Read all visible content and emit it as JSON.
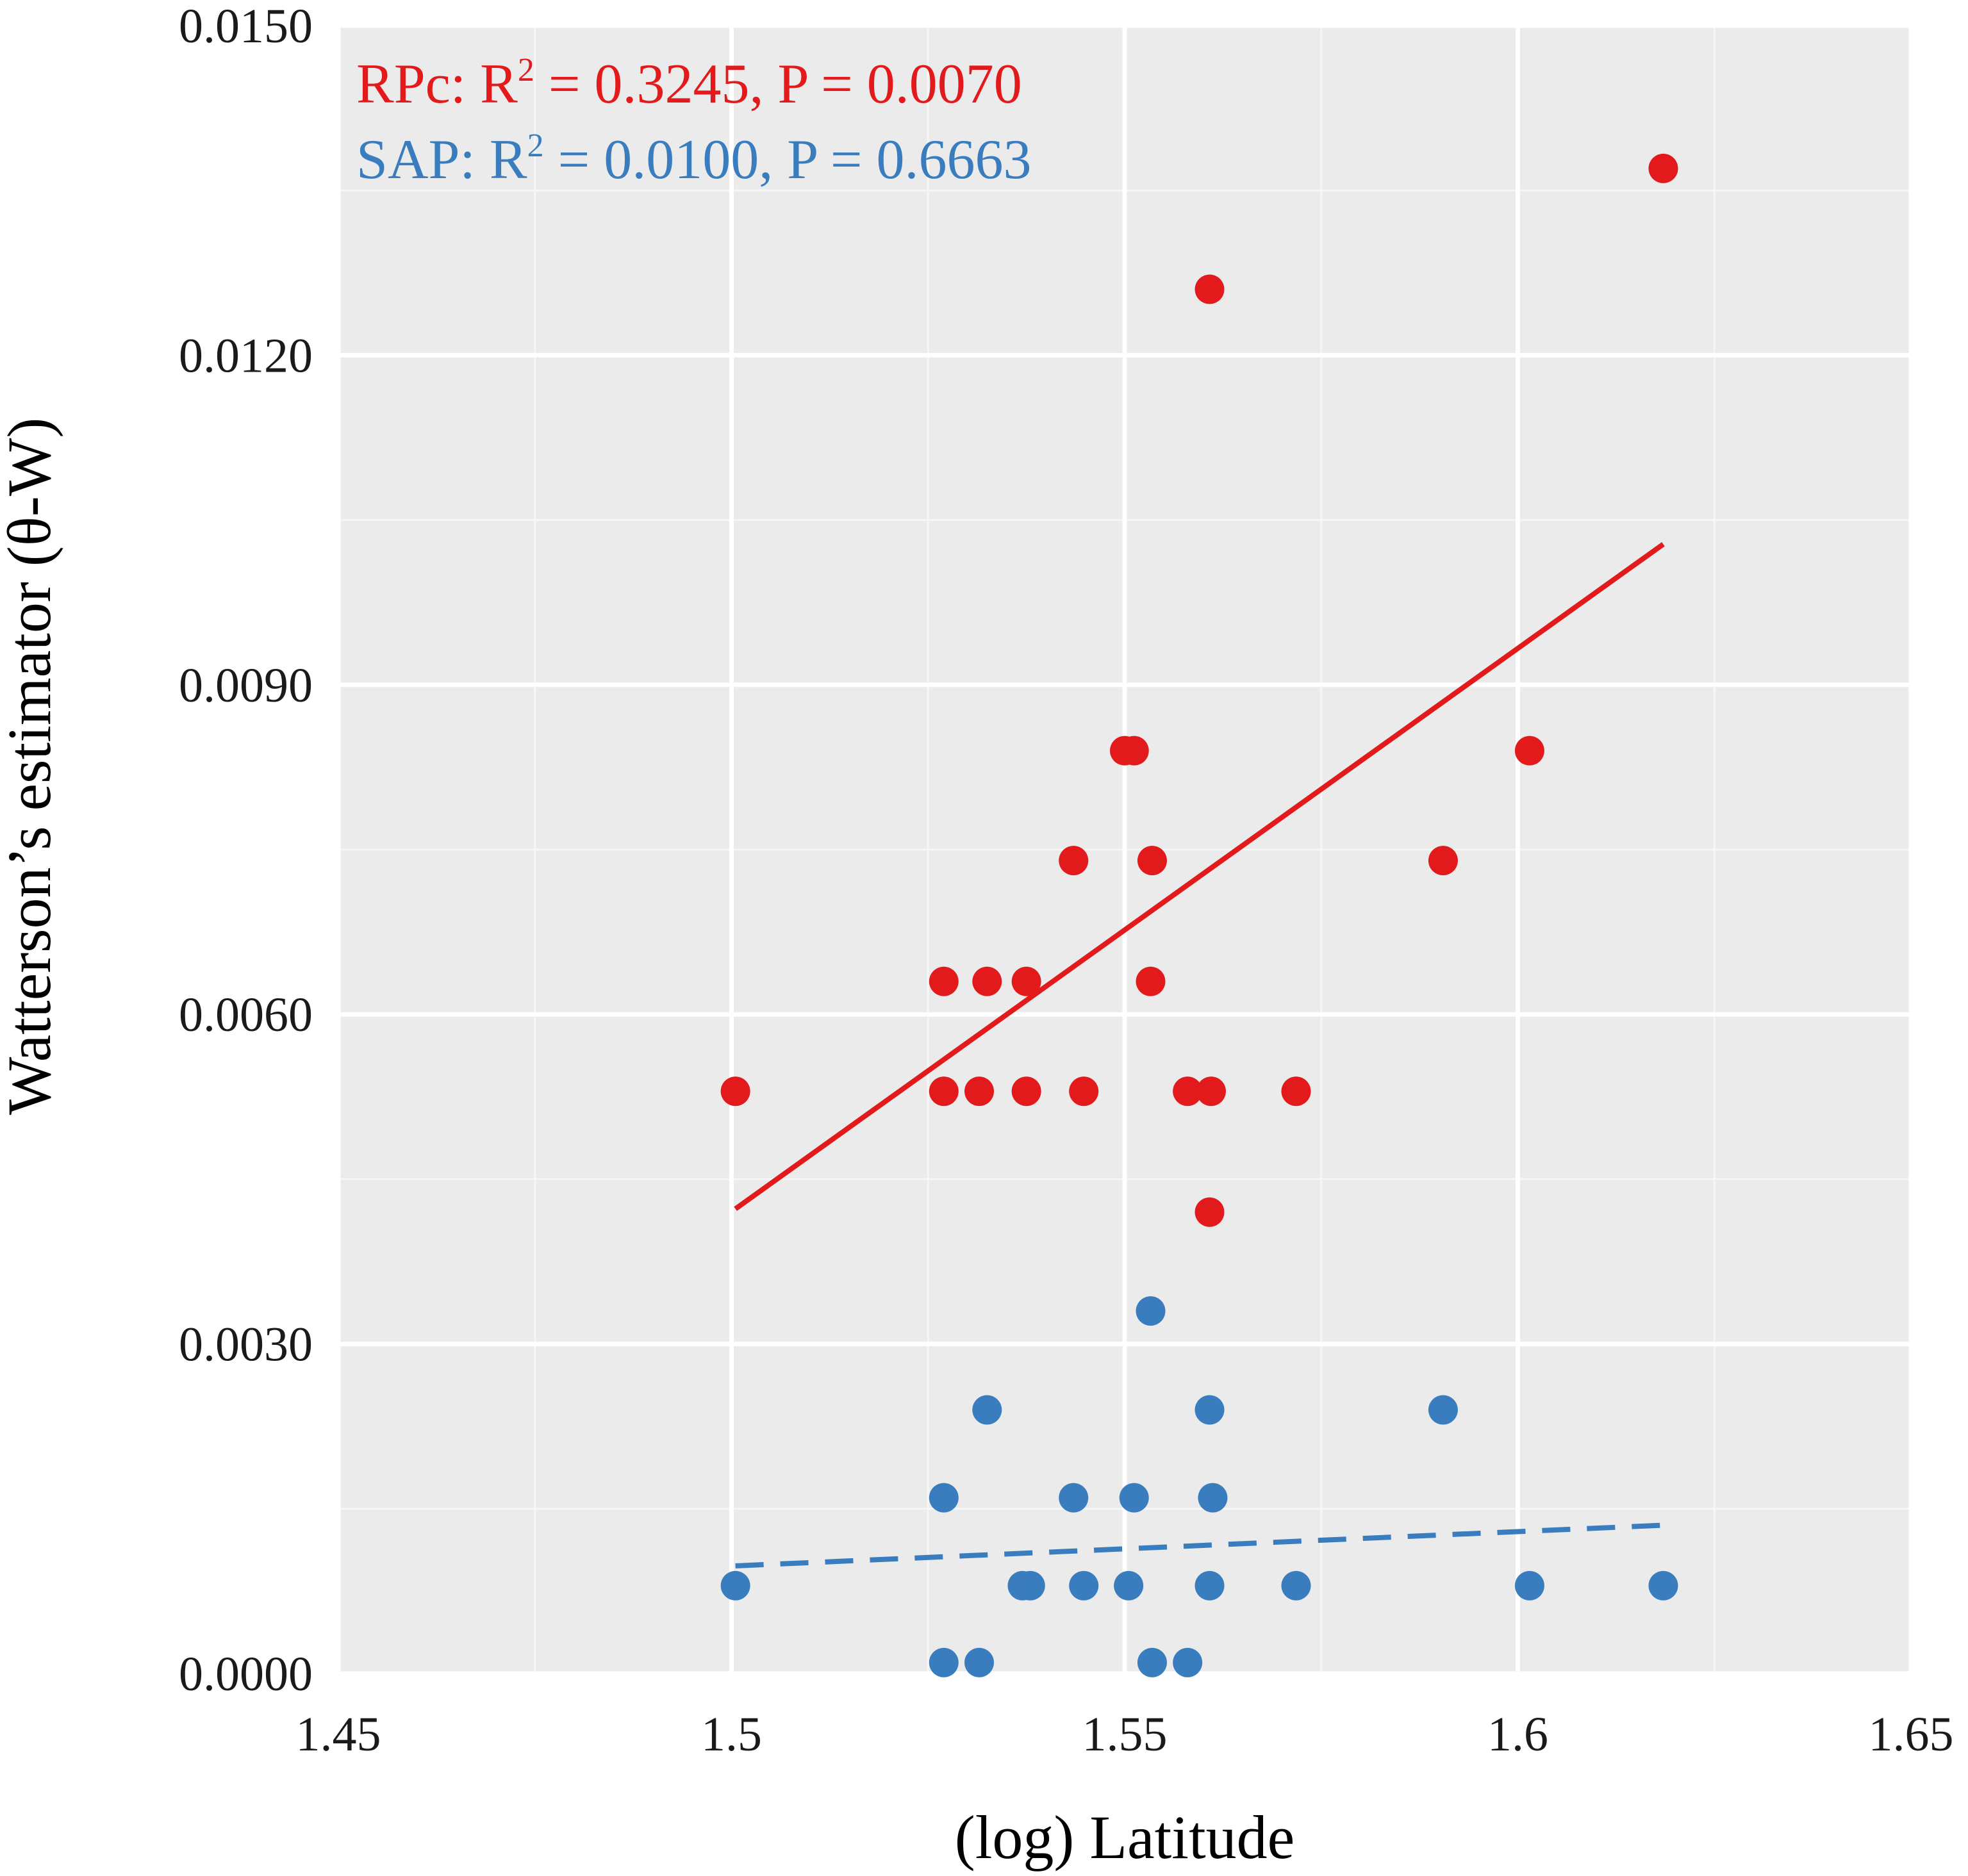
{
  "chart_data": {
    "type": "scatter",
    "xlabel": "(log) Latitude",
    "ylabel": "Watterson’s estimator (θ-W)",
    "xlim": [
      1.45,
      1.65
    ],
    "ylim": [
      0.0,
      0.015
    ],
    "x_ticks": [
      1.45,
      1.5,
      1.55,
      1.6,
      1.65
    ],
    "x_tick_labels": [
      "1.45",
      "1.5",
      "1.55",
      "1.6",
      "1.65"
    ],
    "y_ticks": [
      0.0,
      0.003,
      0.006,
      0.009,
      0.012,
      0.015
    ],
    "y_tick_labels": [
      "0.0000",
      "0.0030",
      "0.0060",
      "0.0090",
      "0.0120",
      "0.0150"
    ],
    "grid": true,
    "legend_placement": "top-left",
    "series": [
      {
        "name": "RPc",
        "color": "#e31a1c",
        "stats_label": "RPc: R",
        "stats_sup": "2",
        "stats_rest": " = 0.3245, P = 0.0070",
        "trend_style": "solid",
        "trend": {
          "x": [
            1.5005,
            1.6185
          ],
          "y": [
            0.00423,
            0.01028
          ]
        },
        "points": [
          {
            "x": 1.5005,
            "y": 0.0053
          },
          {
            "x": 1.527,
            "y": 0.0063
          },
          {
            "x": 1.527,
            "y": 0.0053
          },
          {
            "x": 1.5315,
            "y": 0.0053
          },
          {
            "x": 1.5325,
            "y": 0.0063
          },
          {
            "x": 1.5375,
            "y": 0.0063
          },
          {
            "x": 1.5375,
            "y": 0.0053
          },
          {
            "x": 1.5435,
            "y": 0.0074
          },
          {
            "x": 1.5448,
            "y": 0.0053
          },
          {
            "x": 1.55,
            "y": 0.0084
          },
          {
            "x": 1.5512,
            "y": 0.0084
          },
          {
            "x": 1.5535,
            "y": 0.0074
          },
          {
            "x": 1.5533,
            "y": 0.0063
          },
          {
            "x": 1.558,
            "y": 0.0053
          },
          {
            "x": 1.561,
            "y": 0.0053
          },
          {
            "x": 1.5608,
            "y": 0.0042
          },
          {
            "x": 1.5608,
            "y": 0.0126
          },
          {
            "x": 1.5718,
            "y": 0.0053
          },
          {
            "x": 1.5905,
            "y": 0.0074
          },
          {
            "x": 1.6015,
            "y": 0.0084
          },
          {
            "x": 1.6185,
            "y": 0.0137
          }
        ]
      },
      {
        "name": "SAP",
        "color": "#3a7dbf",
        "stats_label": "SAP: R",
        "stats_sup": "2",
        "stats_rest": " = 0.0100, P = 0.6663",
        "trend_style": "dashed",
        "trend": {
          "x": [
            1.5005,
            1.6185
          ],
          "y": [
            0.00098,
            0.00135
          ]
        },
        "points": [
          {
            "x": 1.5005,
            "y": 0.0008
          },
          {
            "x": 1.527,
            "y": 0.0016
          },
          {
            "x": 1.527,
            "y": 0.0001
          },
          {
            "x": 1.5315,
            "y": 0.0001
          },
          {
            "x": 1.5325,
            "y": 0.0024
          },
          {
            "x": 1.537,
            "y": 0.0008
          },
          {
            "x": 1.538,
            "y": 0.0008
          },
          {
            "x": 1.5435,
            "y": 0.0016
          },
          {
            "x": 1.5448,
            "y": 0.0008
          },
          {
            "x": 1.5505,
            "y": 0.0008
          },
          {
            "x": 1.5512,
            "y": 0.0016
          },
          {
            "x": 1.5533,
            "y": 0.0033
          },
          {
            "x": 1.5535,
            "y": 0.0001
          },
          {
            "x": 1.558,
            "y": 0.0001
          },
          {
            "x": 1.5608,
            "y": 0.0024
          },
          {
            "x": 1.5608,
            "y": 0.0008
          },
          {
            "x": 1.5612,
            "y": 0.0016
          },
          {
            "x": 1.5718,
            "y": 0.0008
          },
          {
            "x": 1.5905,
            "y": 0.0024
          },
          {
            "x": 1.6015,
            "y": 0.0008
          },
          {
            "x": 1.6185,
            "y": 0.0008
          }
        ]
      }
    ]
  }
}
